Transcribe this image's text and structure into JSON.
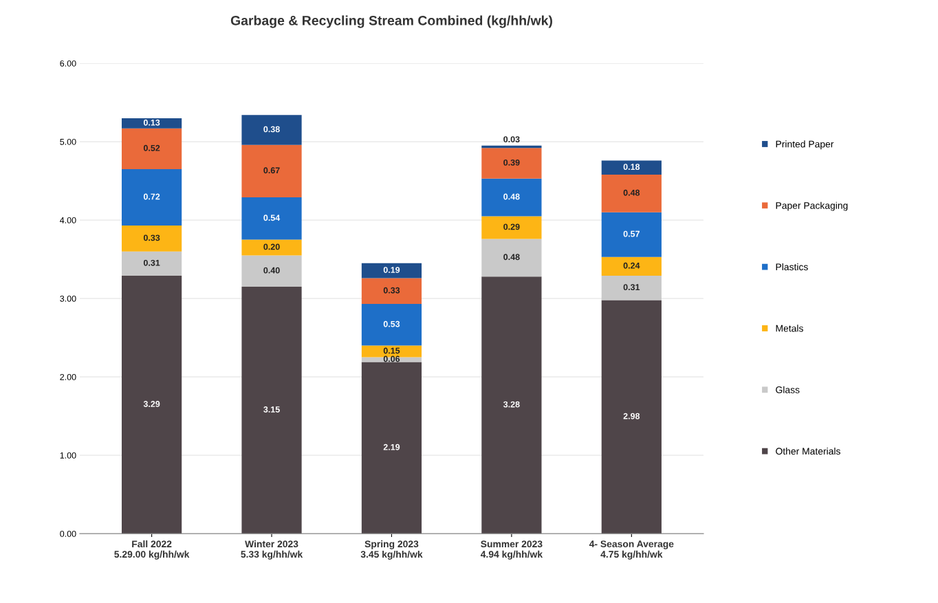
{
  "chart_data": {
    "type": "bar",
    "stacked": true,
    "title": "Garbage & Recycling Stream Combined (kg/hh/wk)",
    "categories": [
      "Fall 2022\n5.29.00 kg/hh/wk",
      "Winter 2023\n5.33 kg/hh/wk",
      "Spring 2023\n3.45 kg/hh/wk",
      "Summer 2023\n4.94 kg/hh/wk",
      "4- Season Average\n4.75 kg/hh/wk"
    ],
    "series": [
      {
        "name": "Other Materials",
        "color": "#4f4549",
        "values": [
          3.29,
          3.15,
          2.19,
          3.28,
          2.98
        ],
        "value_labels": [
          "3.29",
          "3.15",
          "2.19",
          "3.28",
          "2.98"
        ]
      },
      {
        "name": "Glass",
        "color": "#c9c9c9",
        "values": [
          0.31,
          0.4,
          0.06,
          0.48,
          0.31
        ],
        "value_labels": [
          "0.31",
          "0.40",
          "0.06",
          "0.48",
          "0.31"
        ]
      },
      {
        "name": "Metals",
        "color": "#fdb515",
        "values": [
          0.33,
          0.2,
          0.15,
          0.29,
          0.24
        ],
        "value_labels": [
          "0.33",
          "0.20",
          "0.15",
          "0.29",
          "0.24"
        ]
      },
      {
        "name": "Plastics",
        "color": "#1e6fc8",
        "values": [
          0.72,
          0.54,
          0.53,
          0.48,
          0.57
        ],
        "value_labels": [
          "0.72",
          "0.54",
          "0.53",
          "0.48",
          "0.57"
        ]
      },
      {
        "name": "Paper Packaging",
        "color": "#ea6a3a",
        "values": [
          0.52,
          0.67,
          0.33,
          0.39,
          0.48
        ],
        "value_labels": [
          "0.52",
          "0.67",
          "0.33",
          "0.39",
          "0.48"
        ]
      },
      {
        "name": "Printed Paper",
        "color": "#1f4e8c",
        "values": [
          0.13,
          0.38,
          0.19,
          0.03,
          0.18
        ],
        "value_labels": [
          "0.13",
          "0.38",
          "0.19",
          "0.03",
          "0.18"
        ]
      }
    ],
    "ylim": [
      0,
      6
    ],
    "yticks": [
      {
        "value": 0,
        "label": "0.00"
      },
      {
        "value": 1,
        "label": "1.00"
      },
      {
        "value": 2,
        "label": "2.00"
      },
      {
        "value": 3,
        "label": "3.00"
      },
      {
        "value": 4,
        "label": "4.00"
      },
      {
        "value": 5,
        "label": "5.00"
      },
      {
        "value": 6,
        "label": "6.00"
      }
    ],
    "grid": "y",
    "legend": "right"
  }
}
